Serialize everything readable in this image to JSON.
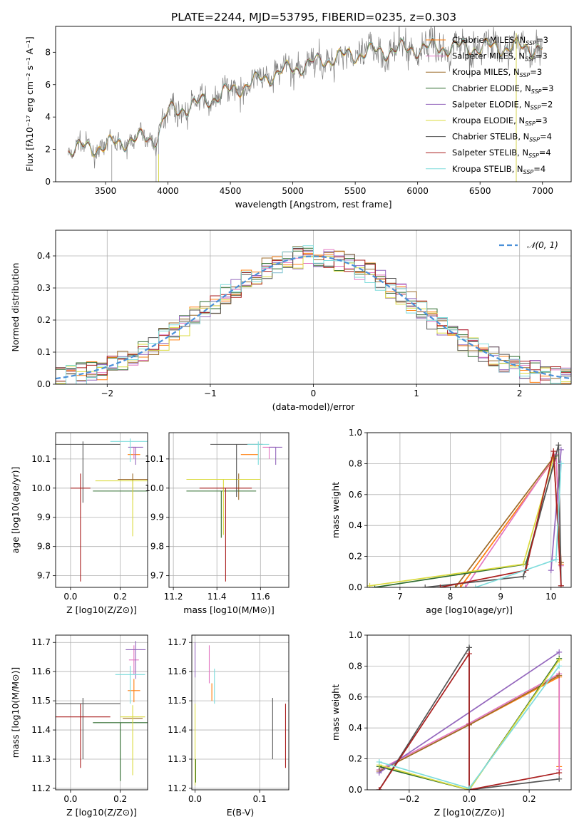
{
  "figure": {
    "title": "PLATE=2244, MJD=53795, FIBERID=0235, z=0.303"
  },
  "colors": {
    "Chabrier MILES": "#ff7f0e",
    "Salpeter MILES": "#e377c2",
    "Kroupa MILES": "#9c6b2a",
    "Chabrier ELODIE": "#2e6b2e",
    "Salpeter ELODIE": "#9467bd",
    "Kroupa ELODIE": "#dbdb3f",
    "Chabrier STELIB": "#555555",
    "Salpeter STELIB": "#aa1f1f",
    "Kroupa STELIB": "#7fdcdc",
    "data": "#808080",
    "normal": "#4a90d9",
    "grid": "#b0b0b0"
  },
  "chart_data": [
    {
      "id": "spectrum",
      "type": "line",
      "xlabel": "wavelength [Angstrom, rest frame]",
      "ylabel": "Flux [fλ10⁻¹⁷ erg cm⁻² s⁻¹ A⁻¹]",
      "xlim": [
        3100,
        7230
      ],
      "ylim": [
        0,
        9.6
      ],
      "xticks": [
        3500,
        4000,
        4500,
        5000,
        5500,
        6000,
        6500,
        7000
      ],
      "yticks": [
        0,
        2,
        4,
        6,
        8
      ],
      "grid": false,
      "legend_position": "upper-right",
      "legend": [
        {
          "name": "Chabrier MILES, N",
          "sub": "SSP",
          "tail": "=3"
        },
        {
          "name": "Salpeter MILES, N",
          "sub": "SSP",
          "tail": "=3"
        },
        {
          "name": "Kroupa MILES, N",
          "sub": "SSP",
          "tail": "=3"
        },
        {
          "name": "Chabrier ELODIE, N",
          "sub": "SSP",
          "tail": "=3"
        },
        {
          "name": "Salpeter ELODIE, N",
          "sub": "SSP",
          "tail": "=2"
        },
        {
          "name": "Kroupa ELODIE, N",
          "sub": "SSP",
          "tail": "=3"
        },
        {
          "name": "Chabrier STELIB, N",
          "sub": "SSP",
          "tail": "=4"
        },
        {
          "name": "Salpeter STELIB, N",
          "sub": "SSP",
          "tail": "=4"
        },
        {
          "name": "Kroupa STELIB, N",
          "sub": "SSP",
          "tail": "=4"
        }
      ],
      "continuum": {
        "x": [
          3200,
          3500,
          3700,
          3900,
          4000,
          4200,
          4500,
          4800,
          5000,
          5300,
          5600,
          5900,
          6200,
          6500,
          6800,
          7000
        ],
        "y": [
          2.0,
          2.2,
          2.6,
          2.7,
          4.3,
          4.7,
          5.6,
          6.5,
          7.0,
          7.6,
          8.0,
          8.2,
          8.3,
          8.3,
          8.3,
          8.3
        ]
      }
    },
    {
      "id": "residuals",
      "type": "line",
      "xlabel": "(data-model)/error",
      "ylabel": "Normed distribution",
      "xlim": [
        -2.5,
        2.5
      ],
      "ylim": [
        0,
        0.48
      ],
      "xticks": [
        -2,
        -1,
        0,
        1,
        2
      ],
      "yticks": [
        0.0,
        0.1,
        0.2,
        0.3,
        0.4
      ],
      "grid": true,
      "legend_position": "upper-right",
      "legend": [
        {
          "name": "𝒩(0, 1)"
        }
      ],
      "bin_width": 0.1
    },
    {
      "id": "age-vs-Z",
      "type": "scatter",
      "xlabel": "Z [log10(Z/Z⊙)]",
      "ylabel": "age [log10(age/yr)]",
      "xlim": [
        -0.06,
        0.31
      ],
      "ylim": [
        9.66,
        10.19
      ],
      "xticks": [
        0.0,
        0.2
      ],
      "yticks": [
        9.7,
        9.8,
        9.9,
        10.0,
        10.1
      ],
      "grid": true,
      "points": [
        {
          "series": "Chabrier MILES",
          "x": 0.255,
          "y": 10.115,
          "xerr": 0.025,
          "yerr": [
            0.0,
            0.0
          ]
        },
        {
          "series": "Salpeter MILES",
          "x": 0.255,
          "y": 10.14,
          "xerr": 0.008,
          "yerr": [
            0.04,
            0.0
          ]
        },
        {
          "series": "Kroupa MILES",
          "x": 0.25,
          "y": 10.03,
          "xerr": 0.06,
          "yerr": [
            0.07,
            0.02
          ]
        },
        {
          "series": "Chabrier ELODIE",
          "x": 0.2,
          "y": 9.99,
          "xerr": 0.11,
          "yerr": [
            0.0,
            0.0
          ]
        },
        {
          "series": "Salpeter ELODIE",
          "x": 0.262,
          "y": 10.14,
          "xerr": 0.03,
          "yerr": [
            0.06,
            0.0
          ]
        },
        {
          "series": "Kroupa ELODIE",
          "x": 0.25,
          "y": 10.025,
          "xerr": 0.15,
          "yerr": [
            0.19,
            0.0
          ]
        },
        {
          "series": "Chabrier STELIB",
          "x": 0.05,
          "y": 10.15,
          "xerr": 0.15,
          "yerr": [
            0.2,
            0.01
          ]
        },
        {
          "series": "Salpeter STELIB",
          "x": 0.04,
          "y": 10.0,
          "xerr": 0.04,
          "yerr": [
            0.32,
            0.05
          ]
        },
        {
          "series": "Kroupa STELIB",
          "x": 0.24,
          "y": 10.16,
          "xerr": 0.08,
          "yerr": [
            0.07,
            0.01
          ]
        }
      ]
    },
    {
      "id": "age-vs-mass",
      "type": "scatter",
      "xlabel": "mass [log10(M/M⊙)]",
      "ylabel": "",
      "xlim": [
        11.18,
        11.73
      ],
      "ylim": [
        9.66,
        10.19
      ],
      "xticks": [
        11.2,
        11.4,
        11.6
      ],
      "yticks": [
        9.7,
        9.8,
        9.9,
        10.0,
        10.1
      ],
      "grid": true,
      "points": [
        {
          "series": "Chabrier MILES",
          "x": 11.55,
          "y": 10.115,
          "xerr": 0.04,
          "yerr": [
            0.0,
            0.0
          ]
        },
        {
          "series": "Salpeter MILES",
          "x": 11.64,
          "y": 10.14,
          "xerr": 0.03,
          "yerr": [
            0.04,
            0.0
          ]
        },
        {
          "series": "Kroupa MILES",
          "x": 11.5,
          "y": 10.03,
          "xerr": 0.05,
          "yerr": [
            0.07,
            0.02
          ]
        },
        {
          "series": "Chabrier ELODIE",
          "x": 11.42,
          "y": 9.99,
          "xerr": 0.16,
          "yerr": [
            0.16,
            0.0
          ]
        },
        {
          "series": "Salpeter ELODIE",
          "x": 11.67,
          "y": 10.14,
          "xerr": 0.03,
          "yerr": [
            0.06,
            0.0
          ]
        },
        {
          "series": "Kroupa ELODIE",
          "x": 11.43,
          "y": 10.03,
          "xerr": 0.17,
          "yerr": [
            0.19,
            0.0
          ]
        },
        {
          "series": "Chabrier STELIB",
          "x": 11.49,
          "y": 10.15,
          "xerr": 0.12,
          "yerr": [
            0.18,
            0.0
          ]
        },
        {
          "series": "Salpeter STELIB",
          "x": 11.44,
          "y": 10.0,
          "xerr": 0.12,
          "yerr": [
            0.32,
            0.0
          ]
        },
        {
          "series": "Kroupa STELIB",
          "x": 11.59,
          "y": 10.15,
          "xerr": 0.05,
          "yerr": [
            0.07,
            0.01
          ]
        }
      ]
    },
    {
      "id": "massweight-vs-age",
      "type": "line",
      "xlabel": "age [log10(age/yr)]",
      "ylabel": "mass weight",
      "xlim": [
        6.35,
        10.4
      ],
      "ylim": [
        0,
        1.0
      ],
      "xticks": [
        7,
        8,
        9,
        10
      ],
      "yticks": [
        0.0,
        0.2,
        0.4,
        0.6,
        0.8,
        1.0
      ],
      "grid": true,
      "series": [
        {
          "name": "Chabrier MILES",
          "x": [
            8.2,
            10.1,
            10.2
          ],
          "y": [
            0.0,
            0.85,
            0.15
          ]
        },
        {
          "name": "Salpeter MILES",
          "x": [
            8.3,
            10.1,
            10.2
          ],
          "y": [
            0.0,
            0.86,
            0.14
          ]
        },
        {
          "name": "Kroupa MILES",
          "x": [
            8.1,
            10.05,
            10.2
          ],
          "y": [
            0.0,
            0.84,
            0.16
          ]
        },
        {
          "name": "Chabrier ELODIE",
          "x": [
            6.5,
            9.5,
            10.1
          ],
          "y": [
            0.0,
            0.15,
            0.85
          ]
        },
        {
          "name": "Salpeter ELODIE",
          "x": [
            10.0,
            10.2
          ],
          "y": [
            0.11,
            0.89
          ]
        },
        {
          "name": "Kroupa ELODIE",
          "x": [
            6.4,
            9.45,
            10.05
          ],
          "y": [
            0.01,
            0.15,
            0.84
          ]
        },
        {
          "name": "Chabrier STELIB",
          "x": [
            7.5,
            9.45,
            10.15,
            10.2
          ],
          "y": [
            0.0,
            0.07,
            0.92,
            0.01
          ]
        },
        {
          "name": "Salpeter STELIB",
          "x": [
            7.8,
            9.5,
            10.05,
            10.2
          ],
          "y": [
            0.0,
            0.11,
            0.88,
            0.01
          ]
        },
        {
          "name": "Kroupa STELIB",
          "x": [
            8.5,
            10.1,
            10.2
          ],
          "y": [
            0.0,
            0.18,
            0.8
          ]
        }
      ]
    },
    {
      "id": "mass-vs-Z",
      "type": "scatter",
      "xlabel": "Z [log10(Z/Z⊙)]",
      "ylabel": "mass [log10(M/M⊙)]",
      "xlim": [
        -0.06,
        0.31
      ],
      "ylim": [
        11.195,
        11.725
      ],
      "xticks": [
        0.0,
        0.2
      ],
      "yticks": [
        11.2,
        11.3,
        11.4,
        11.5,
        11.6,
        11.7
      ],
      "grid": true,
      "points": [
        {
          "series": "Chabrier MILES",
          "x": 0.255,
          "y": 11.535,
          "xerr": 0.025,
          "yerr": [
            0.04,
            0.04
          ]
        },
        {
          "series": "Salpeter MILES",
          "x": 0.255,
          "y": 11.64,
          "xerr": 0.02,
          "yerr": [
            0.05,
            0.05
          ]
        },
        {
          "series": "Kroupa MILES",
          "x": 0.25,
          "y": 11.44,
          "xerr": 0.04,
          "yerr": [
            0.0,
            0.0
          ]
        },
        {
          "series": "Chabrier ELODIE",
          "x": 0.2,
          "y": 11.425,
          "xerr": 0.11,
          "yerr": [
            0.2,
            0.0
          ]
        },
        {
          "series": "Salpeter ELODIE",
          "x": 0.262,
          "y": 11.675,
          "xerr": 0.04,
          "yerr": [
            0.1,
            0.03
          ]
        },
        {
          "series": "Kroupa ELODIE",
          "x": 0.25,
          "y": 11.445,
          "xerr": 0.05,
          "yerr": [
            0.2,
            0.04
          ]
        },
        {
          "series": "Chabrier STELIB",
          "x": 0.05,
          "y": 11.49,
          "xerr": 0.15,
          "yerr": [
            0.19,
            0.02
          ]
        },
        {
          "series": "Salpeter STELIB",
          "x": 0.04,
          "y": 11.445,
          "xerr": 0.12,
          "yerr": [
            0.175,
            0.045
          ]
        },
        {
          "series": "Kroupa STELIB",
          "x": 0.24,
          "y": 11.59,
          "xerr": 0.06,
          "yerr": [
            0.1,
            0.03
          ]
        }
      ]
    },
    {
      "id": "mass-vs-EBV",
      "type": "scatter",
      "xlabel": "E(B-V)",
      "ylabel": "",
      "xlim": [
        -0.005,
        0.145
      ],
      "ylim": [
        11.195,
        11.725
      ],
      "xticks": [
        0.0,
        0.1
      ],
      "yticks": [
        11.2,
        11.3,
        11.4,
        11.5,
        11.6,
        11.7
      ],
      "grid": true,
      "points": [
        {
          "series": "Chabrier MILES",
          "x": 0.026,
          "y": 11.56,
          "xerr": 0,
          "yerr": [
            0.06,
            0.0
          ]
        },
        {
          "series": "Salpeter MILES",
          "x": 0.022,
          "y": 11.63,
          "xerr": 0,
          "yerr": [
            0.07,
            0.06
          ]
        },
        {
          "series": "Kroupa MILES",
          "x": 0.001,
          "y": 11.4,
          "xerr": 0,
          "yerr": [
            0.0,
            0.0
          ]
        },
        {
          "series": "Chabrier ELODIE",
          "x": 0.001,
          "y": 11.3,
          "xerr": 0,
          "yerr": [
            0.08,
            0.0
          ]
        },
        {
          "series": "Salpeter ELODIE",
          "x": 0.0,
          "y": 11.64,
          "xerr": 0,
          "yerr": [
            0.06,
            0.06
          ]
        },
        {
          "series": "Kroupa ELODIE",
          "x": 0.0,
          "y": 11.35,
          "xerr": 0,
          "yerr": [
            0.14,
            0.14
          ]
        },
        {
          "series": "Chabrier STELIB",
          "x": 0.12,
          "y": 11.4,
          "xerr": 0,
          "yerr": [
            0.1,
            0.11
          ]
        },
        {
          "series": "Salpeter STELIB",
          "x": 0.14,
          "y": 11.38,
          "xerr": 0,
          "yerr": [
            0.11,
            0.11
          ]
        },
        {
          "series": "Kroupa STELIB",
          "x": 0.03,
          "y": 11.55,
          "xerr": 0,
          "yerr": [
            0.06,
            0.06
          ]
        }
      ]
    },
    {
      "id": "massweight-vs-Z",
      "type": "line",
      "xlabel": "Z [log10(Z/Z⊙)]",
      "ylabel": "mass weight",
      "xlim": [
        -0.34,
        0.34
      ],
      "ylim": [
        0,
        1.0
      ],
      "xticks": [
        -0.2,
        0.0,
        0.2
      ],
      "yticks": [
        0.0,
        0.2,
        0.4,
        0.6,
        0.8,
        1.0
      ],
      "grid": true,
      "series": [
        {
          "name": "Chabrier MILES",
          "x": [
            -0.3,
            0.0,
            0.3,
            0.3
          ],
          "y": [
            0.12,
            0.42,
            0.73,
            0.15
          ]
        },
        {
          "name": "Salpeter MILES",
          "x": [
            -0.3,
            0.0,
            0.3,
            0.3
          ],
          "y": [
            0.13,
            0.43,
            0.75,
            0.13
          ]
        },
        {
          "name": "Kroupa MILES",
          "x": [
            -0.3,
            0.0,
            0.3
          ],
          "y": [
            0.12,
            0.42,
            0.74
          ]
        },
        {
          "name": "Chabrier ELODIE",
          "x": [
            -0.3,
            0.0,
            0.3
          ],
          "y": [
            0.15,
            0.0,
            0.85
          ]
        },
        {
          "name": "Salpeter ELODIE",
          "x": [
            -0.3,
            0.3
          ],
          "y": [
            0.11,
            0.89
          ]
        },
        {
          "name": "Kroupa ELODIE",
          "x": [
            -0.3,
            0.0,
            0.3
          ],
          "y": [
            0.16,
            0.0,
            0.84
          ]
        },
        {
          "name": "Chabrier STELIB",
          "x": [
            -0.3,
            0.0,
            0.0,
            0.3
          ],
          "y": [
            0.0,
            0.92,
            0.0,
            0.07
          ]
        },
        {
          "name": "Salpeter STELIB",
          "x": [
            -0.3,
            0.0,
            0.0,
            0.3
          ],
          "y": [
            0.0,
            0.88,
            0.0,
            0.11
          ]
        },
        {
          "name": "Kroupa STELIB",
          "x": [
            -0.3,
            0.0,
            0.3
          ],
          "y": [
            0.18,
            0.01,
            0.8
          ]
        }
      ]
    }
  ]
}
